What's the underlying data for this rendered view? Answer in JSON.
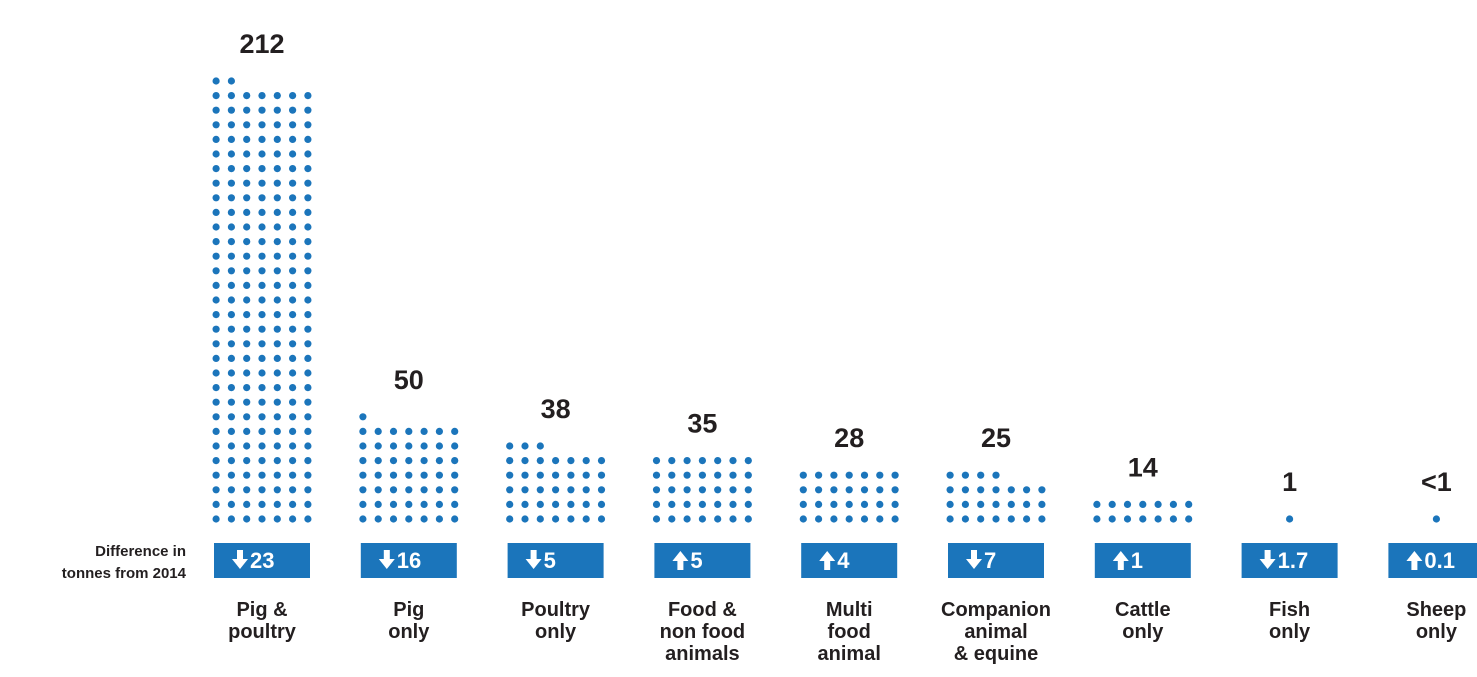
{
  "chart_data": {
    "type": "pictogram",
    "color": "#1b75bb",
    "dots_per_row": 7,
    "categories": [
      [
        "Pig &",
        "poultry"
      ],
      [
        "Pig",
        "only"
      ],
      [
        "Poultry",
        "only"
      ],
      [
        "Food &",
        "non food",
        "animals"
      ],
      [
        "Multi",
        "food",
        "animal"
      ],
      [
        "Companion",
        "animal",
        "& equine"
      ],
      [
        "Cattle",
        "only"
      ],
      [
        "Fish",
        "only"
      ],
      [
        "Sheep",
        "only"
      ]
    ],
    "values": [
      212,
      50,
      38,
      35,
      28,
      25,
      14,
      1,
      0.5
    ],
    "value_labels": [
      "212",
      "50",
      "38",
      "35",
      "28",
      "25",
      "14",
      "1",
      "<1"
    ],
    "changes": {
      "name": [
        "Difference in",
        "tonnes from 2014"
      ],
      "values": [
        -23,
        -16,
        -5,
        5,
        4,
        -7,
        1,
        -1.7,
        0.1
      ],
      "value_labels": [
        "23",
        "16",
        "5",
        "5",
        "4",
        "7",
        "1",
        "1.7",
        "0.1"
      ]
    }
  }
}
